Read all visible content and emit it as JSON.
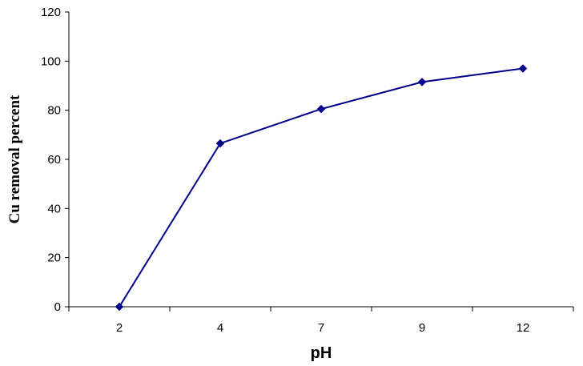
{
  "chart_data": {
    "type": "line",
    "title": "",
    "xlabel": "pH",
    "ylabel": "Cu removal percent",
    "categories": [
      "2",
      "4",
      "7",
      "9",
      "12"
    ],
    "series": [
      {
        "values": [
          0,
          66.5,
          80.5,
          91.5,
          97
        ],
        "color": "#00008B",
        "marker": "diamond"
      }
    ],
    "ylim": [
      0,
      120
    ],
    "yticks": [
      0,
      20,
      40,
      60,
      80,
      100,
      120
    ],
    "grid": false,
    "legend": "none"
  }
}
